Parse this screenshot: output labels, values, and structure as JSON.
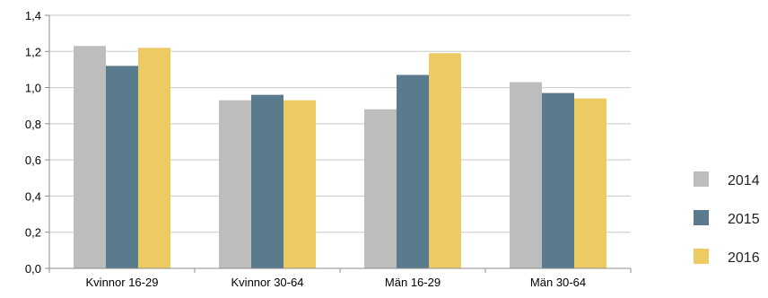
{
  "chart_data": {
    "type": "bar",
    "categories": [
      "Kvinnor 16-29",
      "Kvinnor 30-64",
      "Män 16-29",
      "Män 30-64"
    ],
    "series": [
      {
        "name": "2014",
        "color": "#bdbdbd",
        "values": [
          1.23,
          0.93,
          0.88,
          1.03
        ]
      },
      {
        "name": "2015",
        "color": "#5a7b8e",
        "values": [
          1.12,
          0.96,
          1.07,
          0.97
        ]
      },
      {
        "name": "2016",
        "color": "#eccb63",
        "values": [
          1.22,
          0.93,
          1.19,
          0.94
        ]
      }
    ],
    "ylim": [
      0,
      1.4
    ],
    "yticks": [
      "0,0",
      "0,2",
      "0,4",
      "0,6",
      "0,8",
      "1,0",
      "1,2",
      "1,4"
    ],
    "grid": true,
    "legend_position": "right"
  }
}
